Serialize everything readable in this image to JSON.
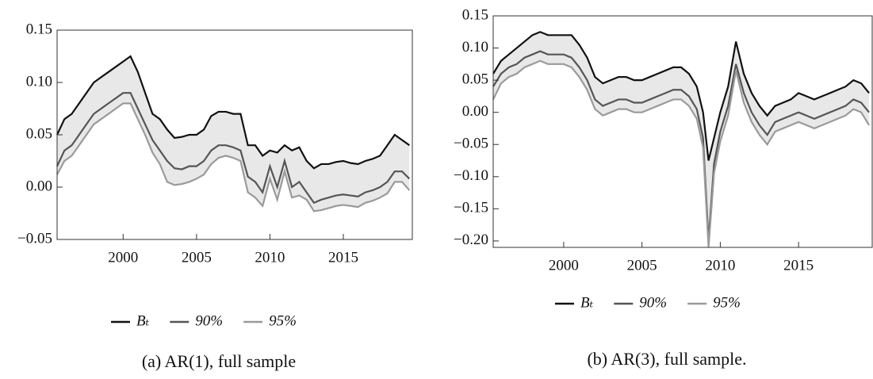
{
  "chart_data": [
    {
      "type": "line",
      "caption": "(a) AR(1), full sample",
      "x": [
        1995.5,
        1996,
        1996.5,
        1997,
        1997.5,
        1998,
        1998.5,
        1999,
        1999.5,
        2000,
        2000.5,
        2001,
        2001.5,
        2002,
        2002.5,
        2003,
        2003.5,
        2004,
        2004.5,
        2005,
        2005.5,
        2006,
        2006.5,
        2007,
        2007.5,
        2008,
        2008.5,
        2009,
        2009.5,
        2010,
        2010.5,
        2011,
        2011.5,
        2012,
        2012.5,
        2013,
        2013.5,
        2014,
        2014.5,
        2015,
        2015.5,
        2016,
        2016.5,
        2017,
        2017.5,
        2018,
        2018.5,
        2019,
        2019.5
      ],
      "series": [
        {
          "name": "Bₜ",
          "color": "#111111",
          "values": [
            0.05,
            0.065,
            0.07,
            0.08,
            0.09,
            0.1,
            0.105,
            0.11,
            0.115,
            0.12,
            0.125,
            0.11,
            0.09,
            0.07,
            0.065,
            0.055,
            0.047,
            0.048,
            0.05,
            0.05,
            0.055,
            0.068,
            0.072,
            0.072,
            0.07,
            0.07,
            0.04,
            0.04,
            0.03,
            0.035,
            0.033,
            0.04,
            0.035,
            0.038,
            0.025,
            0.018,
            0.022,
            0.022,
            0.024,
            0.025,
            0.023,
            0.022,
            0.025,
            0.027,
            0.03,
            0.04,
            0.05,
            0.045,
            0.04
          ]
        },
        {
          "name": "90%",
          "color": "#555555",
          "values": [
            0.02,
            0.035,
            0.04,
            0.05,
            0.06,
            0.07,
            0.075,
            0.08,
            0.085,
            0.09,
            0.09,
            0.075,
            0.06,
            0.045,
            0.035,
            0.025,
            0.018,
            0.017,
            0.02,
            0.02,
            0.025,
            0.035,
            0.04,
            0.04,
            0.038,
            0.035,
            0.01,
            0.005,
            -0.005,
            0.02,
            0,
            0.025,
            0,
            0.005,
            -0.005,
            -0.015,
            -0.012,
            -0.01,
            -0.008,
            -0.007,
            -0.008,
            -0.009,
            -0.005,
            -0.003,
            0,
            0.005,
            0.015,
            0.015,
            0.008
          ]
        },
        {
          "name": "95%",
          "color": "#9a9a9a",
          "values": [
            0.012,
            0.025,
            0.03,
            0.04,
            0.05,
            0.06,
            0.065,
            0.07,
            0.075,
            0.08,
            0.08,
            0.065,
            0.05,
            0.033,
            0.022,
            0.005,
            0.002,
            0.003,
            0.005,
            0.008,
            0.012,
            0.022,
            0.028,
            0.03,
            0.028,
            0.025,
            -0.005,
            -0.01,
            -0.018,
            0.008,
            -0.012,
            0.015,
            -0.01,
            -0.008,
            -0.012,
            -0.023,
            -0.022,
            -0.02,
            -0.018,
            -0.017,
            -0.018,
            -0.019,
            -0.015,
            -0.013,
            -0.01,
            -0.006,
            0.005,
            0.005,
            -0.003
          ]
        }
      ],
      "band_color": "#e8e8e8",
      "xlim": [
        1995.5,
        2019.7
      ],
      "xticks": [
        2000,
        2005,
        2010,
        2015
      ],
      "ylim": [
        -0.05,
        0.15
      ],
      "yticks": [
        {
          "value": -0.05,
          "label": "−0.05"
        },
        {
          "value": 0,
          "label": "0.00"
        },
        0.05,
        {
          "value": 0.1,
          "label": "0.10"
        },
        0.15
      ]
    },
    {
      "type": "line",
      "caption": "(b) AR(3), full sample.",
      "x": [
        1995.5,
        1996,
        1996.5,
        1997,
        1997.5,
        1998,
        1998.5,
        1999,
        1999.5,
        2000,
        2000.5,
        2001,
        2001.5,
        2002,
        2002.5,
        2003,
        2003.5,
        2004,
        2004.5,
        2005,
        2005.5,
        2006,
        2006.5,
        2007,
        2007.5,
        2008,
        2008.5,
        2008.9,
        2009.25,
        2009.6,
        2010,
        2010.5,
        2011,
        2011.5,
        2012,
        2012.5,
        2013,
        2013.5,
        2014,
        2014.5,
        2015,
        2015.5,
        2016,
        2016.5,
        2017,
        2017.5,
        2018,
        2018.5,
        2019,
        2019.5
      ],
      "series": [
        {
          "name": "Bₜ",
          "color": "#111111",
          "values": [
            0.06,
            0.08,
            0.09,
            0.1,
            0.11,
            0.12,
            0.125,
            0.12,
            0.12,
            0.12,
            0.12,
            0.105,
            0.085,
            0.055,
            0.045,
            0.05,
            0.055,
            0.055,
            0.05,
            0.05,
            0.055,
            0.06,
            0.065,
            0.07,
            0.07,
            0.06,
            0.04,
            0,
            -0.075,
            -0.04,
            0,
            0.04,
            0.11,
            0.06,
            0.03,
            0.01,
            -0.005,
            0.01,
            0.015,
            0.02,
            0.03,
            0.025,
            0.02,
            0.025,
            0.03,
            0.035,
            0.04,
            0.05,
            0.045,
            0.03
          ]
        },
        {
          "name": "90%",
          "color": "#555555",
          "values": [
            0.04,
            0.06,
            0.07,
            0.075,
            0.085,
            0.09,
            0.095,
            0.09,
            0.09,
            0.09,
            0.085,
            0.07,
            0.05,
            0.02,
            0.01,
            0.015,
            0.02,
            0.02,
            0.015,
            0.015,
            0.02,
            0.025,
            0.03,
            0.035,
            0.035,
            0.025,
            0.005,
            -0.04,
            -0.2,
            -0.08,
            -0.03,
            0.01,
            0.075,
            0.03,
            0,
            -0.02,
            -0.035,
            -0.015,
            -0.01,
            -0.005,
            0,
            -0.005,
            -0.01,
            -0.005,
            0,
            0.005,
            0.01,
            0.02,
            0.015,
            0
          ]
        },
        {
          "name": "95%",
          "color": "#9a9a9a",
          "values": [
            0.02,
            0.045,
            0.055,
            0.06,
            0.07,
            0.075,
            0.08,
            0.075,
            0.075,
            0.075,
            0.07,
            0.055,
            0.035,
            0.005,
            -0.005,
            0,
            0.005,
            0.005,
            0,
            0,
            0.005,
            0.01,
            0.015,
            0.02,
            0.02,
            0.01,
            -0.01,
            -0.055,
            -0.21,
            -0.095,
            -0.045,
            -0.005,
            0.065,
            0.015,
            -0.015,
            -0.035,
            -0.05,
            -0.03,
            -0.025,
            -0.02,
            -0.015,
            -0.02,
            -0.025,
            -0.02,
            -0.015,
            -0.01,
            -0.005,
            0.005,
            0,
            -0.02
          ]
        }
      ],
      "band_color": "#e8e8e8",
      "xlim": [
        1995.5,
        2019.7
      ],
      "xticks": [
        2000,
        2005,
        2010,
        2015
      ],
      "ylim": [
        -0.21,
        0.15
      ],
      "yticks": [
        {
          "value": -0.2,
          "label": "−0.20"
        },
        {
          "value": -0.15,
          "label": "−0.15"
        },
        {
          "value": -0.1,
          "label": "−0.10"
        },
        {
          "value": -0.05,
          "label": "−0.05"
        },
        {
          "value": 0,
          "label": "0.00"
        },
        0.05,
        {
          "value": 0.1,
          "label": "0.10"
        },
        0.15
      ]
    }
  ]
}
